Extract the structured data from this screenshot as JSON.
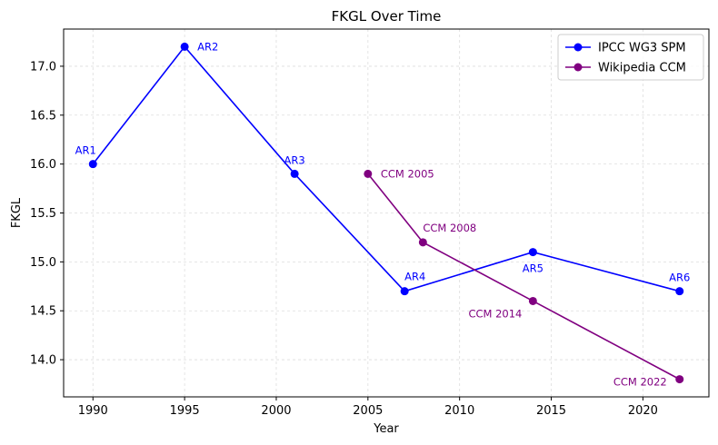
{
  "chart_data": {
    "type": "line",
    "title": "FKGL Over Time",
    "xlabel": "Year",
    "ylabel": "FKGL",
    "xlim": [
      1988.4,
      2023.6
    ],
    "ylim": [
      13.62,
      17.38
    ],
    "x_ticks": [
      1990,
      1995,
      2000,
      2005,
      2010,
      2015,
      2020
    ],
    "y_ticks": [
      14.0,
      14.5,
      15.0,
      15.5,
      16.0,
      16.5,
      17.0
    ],
    "grid": true,
    "legend_position": "top-right",
    "series": [
      {
        "name": "IPCC WG3 SPM",
        "color": "#0000ff",
        "points": [
          {
            "x": 1990,
            "y": 16.0,
            "label": "AR1",
            "label_pos": "above-left"
          },
          {
            "x": 1995,
            "y": 17.2,
            "label": "AR2",
            "label_pos": "right"
          },
          {
            "x": 2001,
            "y": 15.9,
            "label": "AR3",
            "label_pos": "above"
          },
          {
            "x": 2007,
            "y": 14.7,
            "label": "AR4",
            "label_pos": "above-right"
          },
          {
            "x": 2014,
            "y": 15.1,
            "label": "AR5",
            "label_pos": "below"
          },
          {
            "x": 2022,
            "y": 14.7,
            "label": "AR6",
            "label_pos": "above"
          }
        ]
      },
      {
        "name": "Wikipedia CCM",
        "color": "#800080",
        "points": [
          {
            "x": 2005,
            "y": 15.9,
            "label": "CCM 2005",
            "label_pos": "right"
          },
          {
            "x": 2008,
            "y": 15.2,
            "label": "CCM 2008",
            "label_pos": "above-right"
          },
          {
            "x": 2014,
            "y": 14.6,
            "label": "CCM 2014",
            "label_pos": "below-left"
          },
          {
            "x": 2022,
            "y": 13.8,
            "label": "CCM 2022",
            "label_pos": "left"
          }
        ]
      }
    ]
  }
}
